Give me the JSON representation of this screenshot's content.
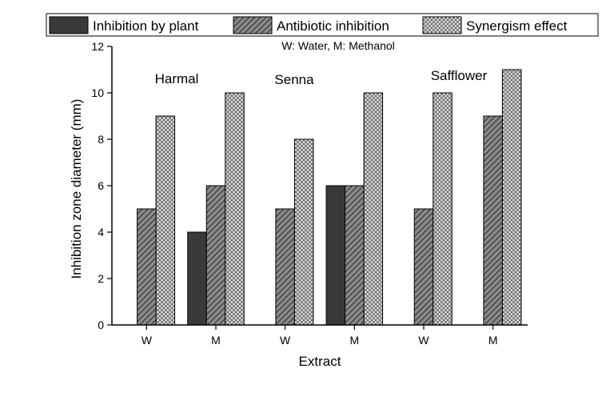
{
  "chart_data": {
    "type": "bar",
    "categories": [
      "W",
      "M",
      "W",
      "M",
      "W",
      "M"
    ],
    "groups": [
      "Harmal",
      "Senna",
      "Safflower"
    ],
    "subtitle": "W: Water, M: Methanol",
    "xlabel": "Extract",
    "ylabel": "Inhibition zone diameter (mm)",
    "ylim": [
      0,
      12
    ],
    "yticks": [
      0,
      2,
      4,
      6,
      8,
      10,
      12
    ],
    "grid": false,
    "legend_position": "top",
    "series": [
      {
        "name": "Inhibition by plant",
        "values": [
          0,
          4,
          0,
          6,
          0,
          0
        ],
        "color": "#3a3a3a",
        "pattern": "solid"
      },
      {
        "name": "Antibiotic inhibition",
        "values": [
          5,
          6,
          5,
          6,
          5,
          9
        ],
        "color": "#6e6e6e",
        "pattern": "diagonal-hatch"
      },
      {
        "name": "Synergism effect",
        "values": [
          9,
          10,
          8,
          10,
          10,
          11
        ],
        "color": "#cfcfcf",
        "pattern": "crosshatch"
      }
    ]
  }
}
